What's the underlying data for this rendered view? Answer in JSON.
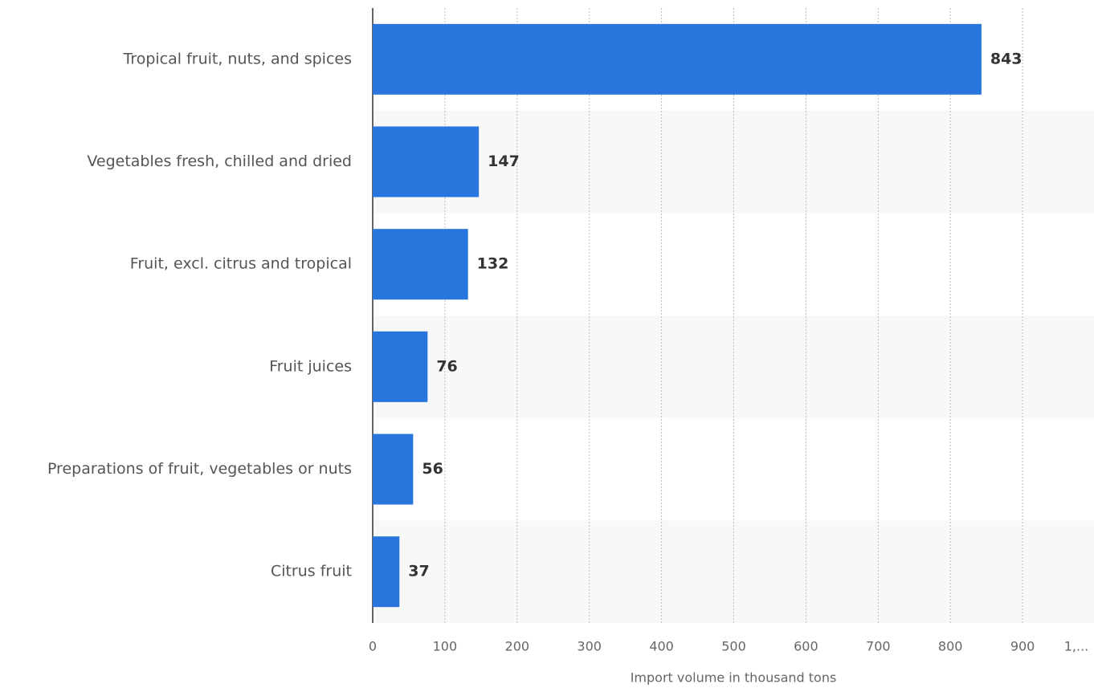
{
  "chart_data": {
    "type": "barh",
    "categories": [
      "Tropical fruit, nuts, and spices",
      "Vegetables fresh, chilled and dried",
      "Fruit, excl. citrus and tropical",
      "Fruit juices",
      "Preparations of fruit, vegetables or nuts",
      "Citrus fruit"
    ],
    "values": [
      843,
      147,
      132,
      76,
      56,
      37
    ],
    "color": "#2876dd",
    "xlabel": "Import volume in thousand tons",
    "xlim": [
      0,
      1000
    ],
    "xticks": [
      0,
      100,
      200,
      300,
      400,
      500,
      600,
      700,
      800,
      900,
      {
        "value": 1000,
        "label": "1,..."
      }
    ],
    "grid": true
  }
}
